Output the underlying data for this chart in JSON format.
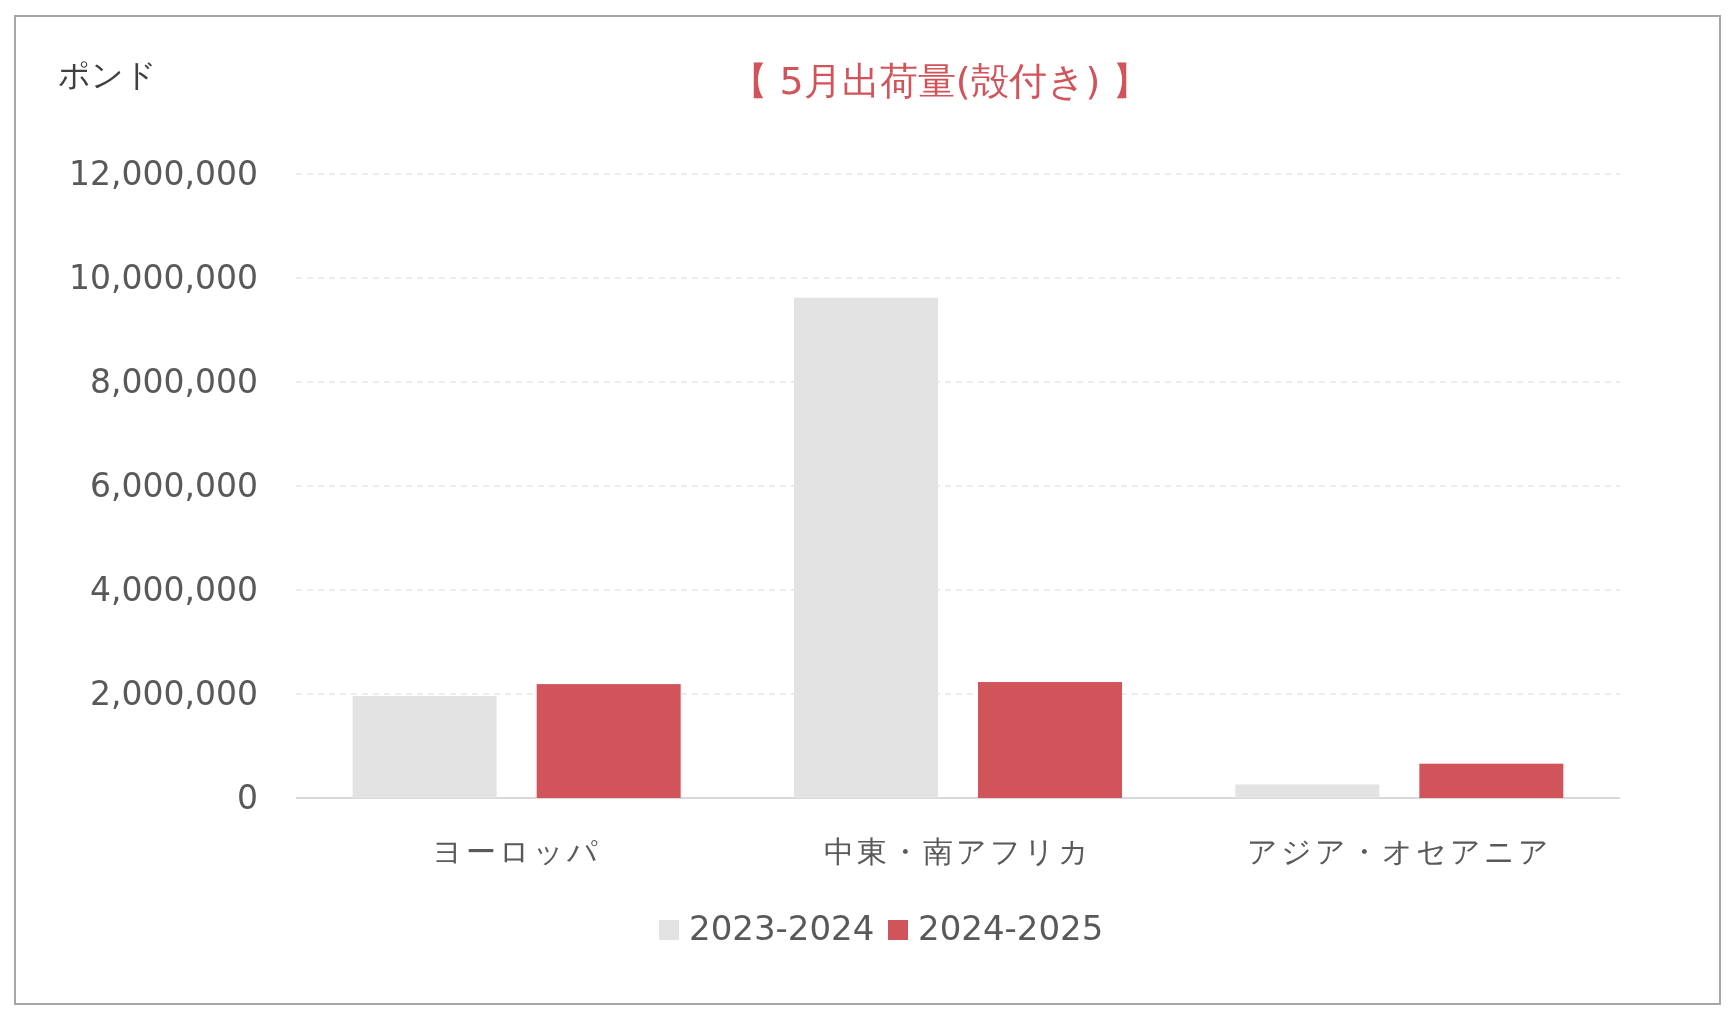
{
  "chart_data": {
    "type": "bar",
    "title": "【 5月出荷量(殻付き) 】",
    "ylabel": "ポンド",
    "categories": [
      "ヨーロッパ",
      "中東・南アフリカ",
      "アジア・オセアニア"
    ],
    "series": [
      {
        "name": "2023-2024",
        "color": "#e3e3e3",
        "values": [
          1960000,
          9620000,
          260000
        ]
      },
      {
        "name": "2024-2025",
        "color": "#d1545a",
        "values": [
          2190000,
          2230000,
          660000
        ]
      }
    ],
    "ylim": [
      0,
      12000000
    ],
    "yticks": [
      {
        "value": 0,
        "label": "0"
      },
      {
        "value": 2000000,
        "label": "2,000,000"
      },
      {
        "value": 4000000,
        "label": "4,000,000"
      },
      {
        "value": 6000000,
        "label": "6,000,000"
      },
      {
        "value": 8000000,
        "label": "8,000,000"
      },
      {
        "value": 10000000,
        "label": "10,000,000"
      },
      {
        "value": 12000000,
        "label": "12,000,000"
      }
    ],
    "grid": "y",
    "legend": "bottom"
  }
}
